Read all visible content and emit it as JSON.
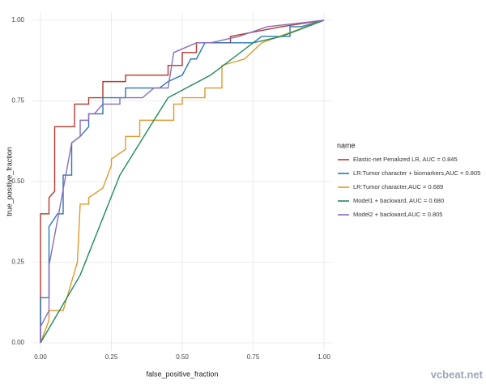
{
  "chart_data": {
    "type": "line",
    "xlabel": "false_positive_fraction",
    "ylabel": "true_positive_fraction",
    "legend_title": "name",
    "legend": "right",
    "grid": true,
    "xlim": [
      0,
      1
    ],
    "ylim": [
      0,
      1
    ],
    "xticks": [
      {
        "value": 0,
        "label": "0.00"
      },
      {
        "value": 0.25,
        "label": "0.25"
      },
      {
        "value": 0.5,
        "label": "0.50"
      },
      {
        "value": 0.75,
        "label": "0.75"
      },
      {
        "value": 1,
        "label": "1.00"
      }
    ],
    "yticks": [
      {
        "value": 0,
        "label": "0.00"
      },
      {
        "value": 0.25,
        "label": "0.25"
      },
      {
        "value": 0.5,
        "label": "0.50"
      },
      {
        "value": 0.75,
        "label": "0.75"
      },
      {
        "value": 1,
        "label": "1.00"
      }
    ],
    "series": [
      {
        "name": "Elastic-net Penalized LR, AUC = 0.845",
        "color": "#b5392f",
        "x": [
          0,
          0,
          0.03,
          0.03,
          0.05,
          0.05,
          0.12,
          0.12,
          0.17,
          0.17,
          0.22,
          0.22,
          0.3,
          0.3,
          0.45,
          0.45,
          0.5,
          0.5,
          0.55,
          0.55,
          0.67,
          0.67,
          0.85,
          1
        ],
        "values": [
          0,
          0.4,
          0.4,
          0.45,
          0.47,
          0.67,
          0.67,
          0.74,
          0.74,
          0.76,
          0.76,
          0.81,
          0.81,
          0.83,
          0.83,
          0.86,
          0.86,
          0.9,
          0.9,
          0.93,
          0.93,
          0.95,
          0.98,
          1
        ]
      },
      {
        "name": "LR:Tumor character + biomarkers,AUC = 0.805",
        "color": "#2a78ad",
        "x": [
          0,
          0,
          0.03,
          0.03,
          0.06,
          0.08,
          0.08,
          0.11,
          0.11,
          0.14,
          0.17,
          0.17,
          0.22,
          0.22,
          0.3,
          0.3,
          0.42,
          0.45,
          0.5,
          0.53,
          0.55,
          0.58,
          0.75,
          0.78,
          0.88,
          0.88,
          0.92,
          1
        ],
        "values": [
          0,
          0.14,
          0.14,
          0.36,
          0.4,
          0.4,
          0.52,
          0.52,
          0.62,
          0.64,
          0.67,
          0.71,
          0.71,
          0.76,
          0.76,
          0.79,
          0.79,
          0.81,
          0.83,
          0.88,
          0.88,
          0.93,
          0.93,
          0.95,
          0.95,
          0.98,
          0.98,
          1
        ]
      },
      {
        "name": "LR:Tumor character,AUC = 0.689",
        "color": "#e09a2a",
        "x": [
          0,
          0.03,
          0.03,
          0.08,
          0.13,
          0.14,
          0.17,
          0.17,
          0.22,
          0.25,
          0.25,
          0.3,
          0.3,
          0.35,
          0.35,
          0.47,
          0.47,
          0.5,
          0.5,
          0.58,
          0.58,
          0.64,
          0.64,
          0.72,
          0.78,
          1
        ],
        "values": [
          0,
          0.07,
          0.1,
          0.1,
          0.25,
          0.43,
          0.43,
          0.45,
          0.48,
          0.55,
          0.57,
          0.6,
          0.64,
          0.64,
          0.69,
          0.69,
          0.74,
          0.74,
          0.76,
          0.76,
          0.79,
          0.79,
          0.86,
          0.88,
          0.93,
          1
        ]
      },
      {
        "name": "Model1 + backward, AUC = 0.680",
        "color": "#1f8a5b",
        "x": [
          0,
          0.14,
          0.28,
          0.4,
          0.45,
          0.6,
          0.75,
          0.85,
          1
        ],
        "values": [
          0,
          0.21,
          0.52,
          0.69,
          0.76,
          0.83,
          0.93,
          0.95,
          1
        ]
      },
      {
        "name": "Model2 + backward,AUC = 0.805",
        "color": "#8a6dbf",
        "x": [
          0,
          0,
          0.03,
          0.03,
          0.06,
          0.11,
          0.14,
          0.14,
          0.17,
          0.17,
          0.19,
          0.22,
          0.28,
          0.28,
          0.36,
          0.4,
          0.45,
          0.47,
          0.55,
          0.6,
          0.7,
          0.8,
          1
        ],
        "values": [
          0,
          0.05,
          0.1,
          0.24,
          0.38,
          0.62,
          0.64,
          0.69,
          0.69,
          0.71,
          0.71,
          0.74,
          0.74,
          0.76,
          0.76,
          0.79,
          0.79,
          0.9,
          0.93,
          0.93,
          0.95,
          0.98,
          1
        ]
      }
    ]
  },
  "watermark": "vcbeat.net"
}
